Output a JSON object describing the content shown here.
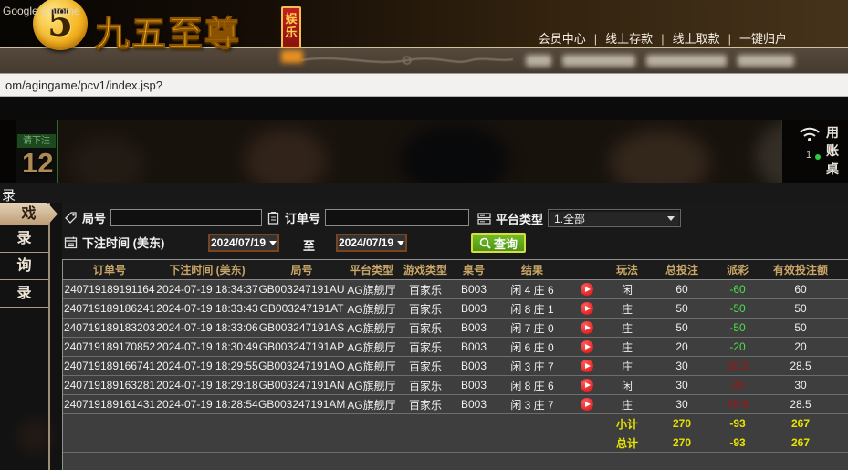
{
  "site_header": {
    "logo_symbol": "5",
    "logo_text": "九五至尊",
    "logo_badge": "娱乐",
    "nav": [
      "会员中心",
      "线上存款",
      "线上取款",
      "一键归户"
    ]
  },
  "browser": {
    "window_title": "Google Chrome",
    "url": "om/agingame/pcv1/index.jsp?"
  },
  "game_strip": {
    "bet_status": "请下注",
    "countdown": "12",
    "signal": "1",
    "side_labels": [
      "用",
      "账",
      "桌"
    ]
  },
  "page": {
    "section_title": "录"
  },
  "sidebar": {
    "items": [
      {
        "label": "戏",
        "active": true
      },
      {
        "label": "录",
        "active": false
      },
      {
        "label": "询",
        "active": false
      },
      {
        "label": "录",
        "active": false
      }
    ]
  },
  "filters": {
    "round_label": "局号",
    "round_value": "",
    "order_label": "订单号",
    "order_value": "",
    "platform_label": "平台类型",
    "platform_value": "1.全部",
    "bet_time_label": "下注时间 (美东)",
    "date_from": "2024/07/19",
    "to_label": "至",
    "date_to": "2024/07/19",
    "query_label": "查询"
  },
  "table": {
    "headers": [
      "订单号",
      "下注时间 (美东)",
      "局号",
      "平台类型",
      "游戏类型",
      "桌号",
      "结果",
      "",
      "玩法",
      "总投注",
      "派彩",
      "有效投注额",
      ""
    ],
    "rows": [
      {
        "order": "240719189191164",
        "time": "2024-07-19 18:34:37",
        "round": "GB003247191AU",
        "platform": "AG旗舰厅",
        "game": "百家乐",
        "table_no": "B003",
        "result": "闲 4 庄 6",
        "play": "闲",
        "bet": "60",
        "payout": "-60",
        "payout_type": "neg",
        "valid": "60"
      },
      {
        "order": "240719189186241",
        "time": "2024-07-19 18:33:43",
        "round": "GB003247191AT",
        "platform": "AG旗舰厅",
        "game": "百家乐",
        "table_no": "B003",
        "result": "闲 8 庄 1",
        "play": "庄",
        "bet": "50",
        "payout": "-50",
        "payout_type": "neg",
        "valid": "50"
      },
      {
        "order": "240719189183203",
        "time": "2024-07-19 18:33:06",
        "round": "GB003247191AS",
        "platform": "AG旗舰厅",
        "game": "百家乐",
        "table_no": "B003",
        "result": "闲 7 庄 0",
        "play": "庄",
        "bet": "50",
        "payout": "-50",
        "payout_type": "neg",
        "valid": "50"
      },
      {
        "order": "240719189170852",
        "time": "2024-07-19 18:30:49",
        "round": "GB003247191AP",
        "platform": "AG旗舰厅",
        "game": "百家乐",
        "table_no": "B003",
        "result": "闲 6 庄 0",
        "play": "庄",
        "bet": "20",
        "payout": "-20",
        "payout_type": "neg",
        "valid": "20"
      },
      {
        "order": "240719189166741",
        "time": "2024-07-19 18:29:55",
        "round": "GB003247191AO",
        "platform": "AG旗舰厅",
        "game": "百家乐",
        "table_no": "B003",
        "result": "闲 3 庄 7",
        "play": "庄",
        "bet": "30",
        "payout": "28.5",
        "payout_type": "pos",
        "valid": "28.5"
      },
      {
        "order": "240719189163281",
        "time": "2024-07-19 18:29:18",
        "round": "GB003247191AN",
        "platform": "AG旗舰厅",
        "game": "百家乐",
        "table_no": "B003",
        "result": "闲 8 庄 6",
        "play": "闲",
        "bet": "30",
        "payout": "30",
        "payout_type": "pos",
        "valid": "30"
      },
      {
        "order": "240719189161431",
        "time": "2024-07-19 18:28:54",
        "round": "GB003247191AM",
        "platform": "AG旗舰厅",
        "game": "百家乐",
        "table_no": "B003",
        "result": "闲 3 庄 7",
        "play": "庄",
        "bet": "30",
        "payout": "28.5",
        "payout_type": "pos",
        "valid": "28.5"
      }
    ],
    "subtotal": {
      "label": "小计",
      "total_bet": "270",
      "payout": "-93",
      "valid_bet": "267"
    },
    "total": {
      "label": "总计",
      "total_bet": "270",
      "payout": "-93",
      "valid_bet": "267"
    }
  },
  "colors": {
    "header_gold": "#c9a567",
    "win_red": "#a81414",
    "loss_green": "#4ce04c",
    "sum_yellow": "#e8e400",
    "query_green": "#58a41c"
  }
}
